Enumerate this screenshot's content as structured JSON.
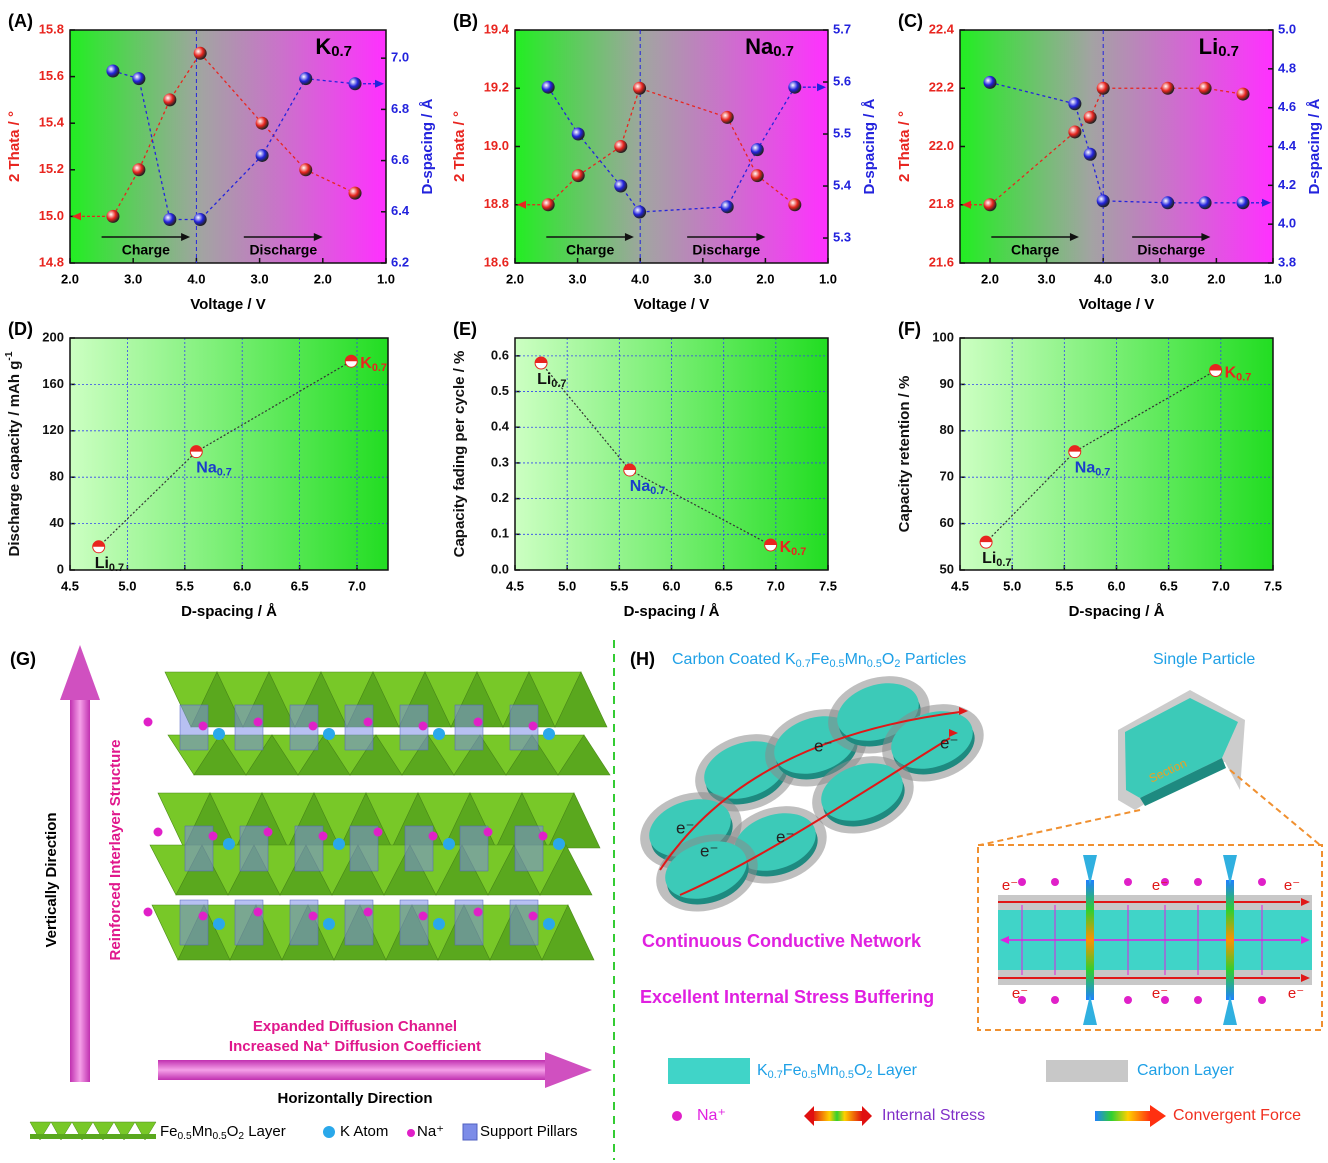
{
  "chart_data": [
    {
      "type": "line",
      "panel_label": "(A)",
      "label": [
        "K",
        "0.7"
      ],
      "xlabel": "Voltage / V",
      "ylabel": "2 Thata / °",
      "y2label": "D-spacing / Å",
      "annotations": [
        "Charge",
        "Discharge"
      ],
      "x": [
        0.68,
        1.09,
        1.58,
        2.06,
        3.04,
        3.73,
        4.51
      ],
      "series": [
        {
          "color": "#e8251f",
          "values": [
            15.0,
            15.2,
            15.5,
            15.7,
            15.4,
            15.2,
            15.1
          ]
        },
        {
          "color": "#2323dd",
          "axis": "y2",
          "values": [
            6.95,
            6.92,
            6.37,
            6.37,
            6.62,
            6.92,
            6.9
          ]
        }
      ],
      "xlim": [
        0,
        5
      ],
      "xticks": [
        {
          "value": 0,
          "label": "2.0"
        },
        {
          "value": 1,
          "label": "3.0"
        },
        {
          "value": 2,
          "label": "4.0"
        },
        {
          "value": 3,
          "label": "3.0"
        },
        {
          "value": 4,
          "label": "2.0"
        },
        {
          "value": 5,
          "label": "1.0"
        }
      ],
      "ylim": [
        14.8,
        15.8
      ],
      "yticks": [
        14.8,
        {
          "value": 15,
          "label": "15.0"
        },
        15.2,
        15.4,
        15.6,
        15.8
      ],
      "y2lim": [
        6.2,
        7.11
      ],
      "y2ticks": [
        6.2,
        6.4,
        6.6,
        6.8,
        {
          "value": 7,
          "label": "7.0"
        }
      ],
      "grid": false
    },
    {
      "type": "line",
      "panel_label": "(B)",
      "label": [
        "Na",
        "0.7"
      ],
      "xlabel": "Voltage / V",
      "ylabel": "2 Thata / °",
      "y2label": "D-spacing / Å",
      "annotations": [
        "Charge",
        "Discharge"
      ],
      "x": [
        0.53,
        1.01,
        1.69,
        1.99,
        3.39,
        3.87,
        4.47
      ],
      "series": [
        {
          "color": "#e8251f",
          "values": [
            18.8,
            18.9,
            19.0,
            19.2,
            19.1,
            18.9,
            18.8
          ]
        },
        {
          "color": "#2323dd",
          "axis": "y2",
          "values": [
            5.59,
            5.5,
            5.4,
            5.35,
            5.36,
            5.47,
            5.59
          ]
        }
      ],
      "xlim": [
        0,
        5
      ],
      "xticks": [
        {
          "value": 0,
          "label": "2.0"
        },
        {
          "value": 1,
          "label": "3.0"
        },
        {
          "value": 2,
          "label": "4.0"
        },
        {
          "value": 3,
          "label": "3.0"
        },
        {
          "value": 4,
          "label": "2.0"
        },
        {
          "value": 5,
          "label": "1.0"
        }
      ],
      "ylim": [
        18.6,
        19.4
      ],
      "yticks": [
        18.6,
        18.8,
        {
          "value": 19,
          "label": "19.0"
        },
        19.2,
        19.4
      ],
      "y2lim": [
        5.252,
        5.7
      ],
      "y2ticks": [
        5.3,
        5.4,
        5.5,
        5.6,
        5.7
      ],
      "grid": false
    },
    {
      "type": "line",
      "panel_label": "(C)",
      "label": [
        "Li",
        "0.7"
      ],
      "xlabel": "Voltage / V",
      "ylabel": "2 Thata / °",
      "y2label": "D-spacing / Å",
      "annotations": [
        "Charge",
        "Discharge"
      ],
      "x": [
        0,
        1.5,
        1.77,
        2.0,
        3.14,
        3.8,
        4.47
      ],
      "series": [
        {
          "color": "#e8251f",
          "values": [
            21.8,
            22.05,
            22.1,
            22.2,
            22.2,
            22.2,
            22.18
          ]
        },
        {
          "color": "#2323dd",
          "axis": "y2",
          "values": [
            4.73,
            4.62,
            4.36,
            4.12,
            4.11,
            4.11,
            4.11
          ]
        }
      ],
      "xlim": [
        -0.53,
        5
      ],
      "xticks": [
        {
          "value": 0,
          "label": "2.0"
        },
        {
          "value": 1,
          "label": "3.0"
        },
        {
          "value": 2,
          "label": "4.0"
        },
        {
          "value": 3,
          "label": "3.0"
        },
        {
          "value": 4,
          "label": "2.0"
        },
        {
          "value": 5,
          "label": "1.0"
        }
      ],
      "ylim": [
        21.6,
        22.4
      ],
      "yticks": [
        21.6,
        21.8,
        {
          "value": 22,
          "label": "22.0"
        },
        22.2,
        22.4
      ],
      "y2lim": [
        3.8,
        5.0
      ],
      "y2ticks": [
        3.8,
        {
          "value": 4,
          "label": "4.0"
        },
        4.2,
        4.4,
        4.6,
        4.8,
        {
          "value": 5,
          "label": "5.0"
        }
      ],
      "grid": false
    },
    {
      "type": "line",
      "panel_label": "(D)",
      "xlabel": "D-spacing / Å",
      "ylabel": [
        "Discharge capacity / mAh g",
        "-1"
      ],
      "x": [
        4.75,
        5.6,
        6.95
      ],
      "values": [
        20,
        102,
        180
      ],
      "color": "#e8251f",
      "line_color": "#333333",
      "point_labels": [
        [
          "Li",
          "0.7"
        ],
        [
          "Na",
          "0.7"
        ],
        [
          "K",
          "0.7"
        ]
      ],
      "label_colors": [
        "#111111",
        "#1a3ccc",
        "#e8251f"
      ],
      "xlim": [
        4.5,
        7.27
      ],
      "xticks": [
        4.5,
        {
          "value": 5,
          "label": "5.0"
        },
        5.5,
        {
          "value": 6,
          "label": "6.0"
        },
        6.5,
        {
          "value": 7,
          "label": "7.0"
        }
      ],
      "ylim": [
        0,
        200
      ],
      "yticks": [
        0,
        40,
        80,
        120,
        160,
        200
      ],
      "grid": true
    },
    {
      "type": "line",
      "panel_label": "(E)",
      "xlabel": "D-spacing / Å",
      "ylabel": "Capacity fading per cycle / %",
      "x": [
        4.75,
        5.6,
        6.95
      ],
      "values": [
        0.58,
        0.28,
        0.07
      ],
      "color": "#e8251f",
      "line_color": "#333333",
      "point_labels": [
        [
          "Li",
          "0.7"
        ],
        [
          "Na",
          "0.7"
        ],
        [
          "K",
          "0.7"
        ]
      ],
      "label_colors": [
        "#111111",
        "#1a3ccc",
        "#e8251f"
      ],
      "xlim": [
        4.5,
        7.5
      ],
      "xticks": [
        4.5,
        {
          "value": 5,
          "label": "5.0"
        },
        5.5,
        {
          "value": 6,
          "label": "6.0"
        },
        6.5,
        {
          "value": 7,
          "label": "7.0"
        },
        7.5
      ],
      "ylim": [
        0,
        0.65
      ],
      "yticks": [
        {
          "value": 0,
          "label": "0.0"
        },
        0.1,
        0.2,
        0.3,
        0.4,
        0.5,
        0.6
      ],
      "grid": true
    },
    {
      "type": "line",
      "panel_label": "(F)",
      "xlabel": "D-spacing / Å",
      "ylabel": "Capacity retention / %",
      "x": [
        4.75,
        5.6,
        6.95
      ],
      "values": [
        56,
        75.5,
        93
      ],
      "color": "#e8251f",
      "line_color": "#333333",
      "point_labels": [
        [
          "Li",
          "0.7"
        ],
        [
          "Na",
          "0.7"
        ],
        [
          "K",
          "0.7"
        ]
      ],
      "label_colors": [
        "#111111",
        "#1a3ccc",
        "#e8251f"
      ],
      "xlim": [
        4.5,
        7.5
      ],
      "xticks": [
        4.5,
        {
          "value": 5,
          "label": "5.0"
        },
        5.5,
        {
          "value": 6,
          "label": "6.0"
        },
        6.5,
        {
          "value": 7,
          "label": "7.0"
        },
        7.5
      ],
      "ylim": [
        50,
        100
      ],
      "yticks": [
        50,
        60,
        70,
        80,
        90,
        100
      ],
      "grid": true
    }
  ],
  "panel_g": {
    "label": "(G)",
    "vertical": "Vertically Direction",
    "interlayer": "Reinforced Interlayer Structure",
    "channel": "Expanded Diffusion Channel",
    "coefficient": "Increased Na⁺ Diffusion Coefficient",
    "horizontal": "Horizontally Direction",
    "legend": {
      "layer": [
        "Fe",
        "0.5",
        "Mn",
        "0.5",
        "O",
        "2",
        " Layer"
      ],
      "k_atom": "K Atom",
      "na": "Na⁺",
      "pillars": "Support Pillars"
    }
  },
  "panel_h": {
    "label": "(H)",
    "particles_title": [
      "Carbon Coated K",
      "0.7",
      "Fe",
      "0.5",
      "Mn",
      "0.5",
      "O",
      "2",
      " Particles"
    ],
    "single": "Single Particle",
    "section": "Section",
    "electron": "e⁻",
    "network": "Continuous Conductive Network",
    "buffering": "Excellent Internal Stress Buffering",
    "legend": {
      "layer": [
        "K",
        "0.7",
        "Fe",
        "0.5",
        "Mn",
        "0.5",
        "O",
        "2",
        " Layer"
      ],
      "carbon": "Carbon Layer",
      "na": "Na⁺",
      "stress": "Internal Stress",
      "force": "Convergent Force"
    }
  }
}
